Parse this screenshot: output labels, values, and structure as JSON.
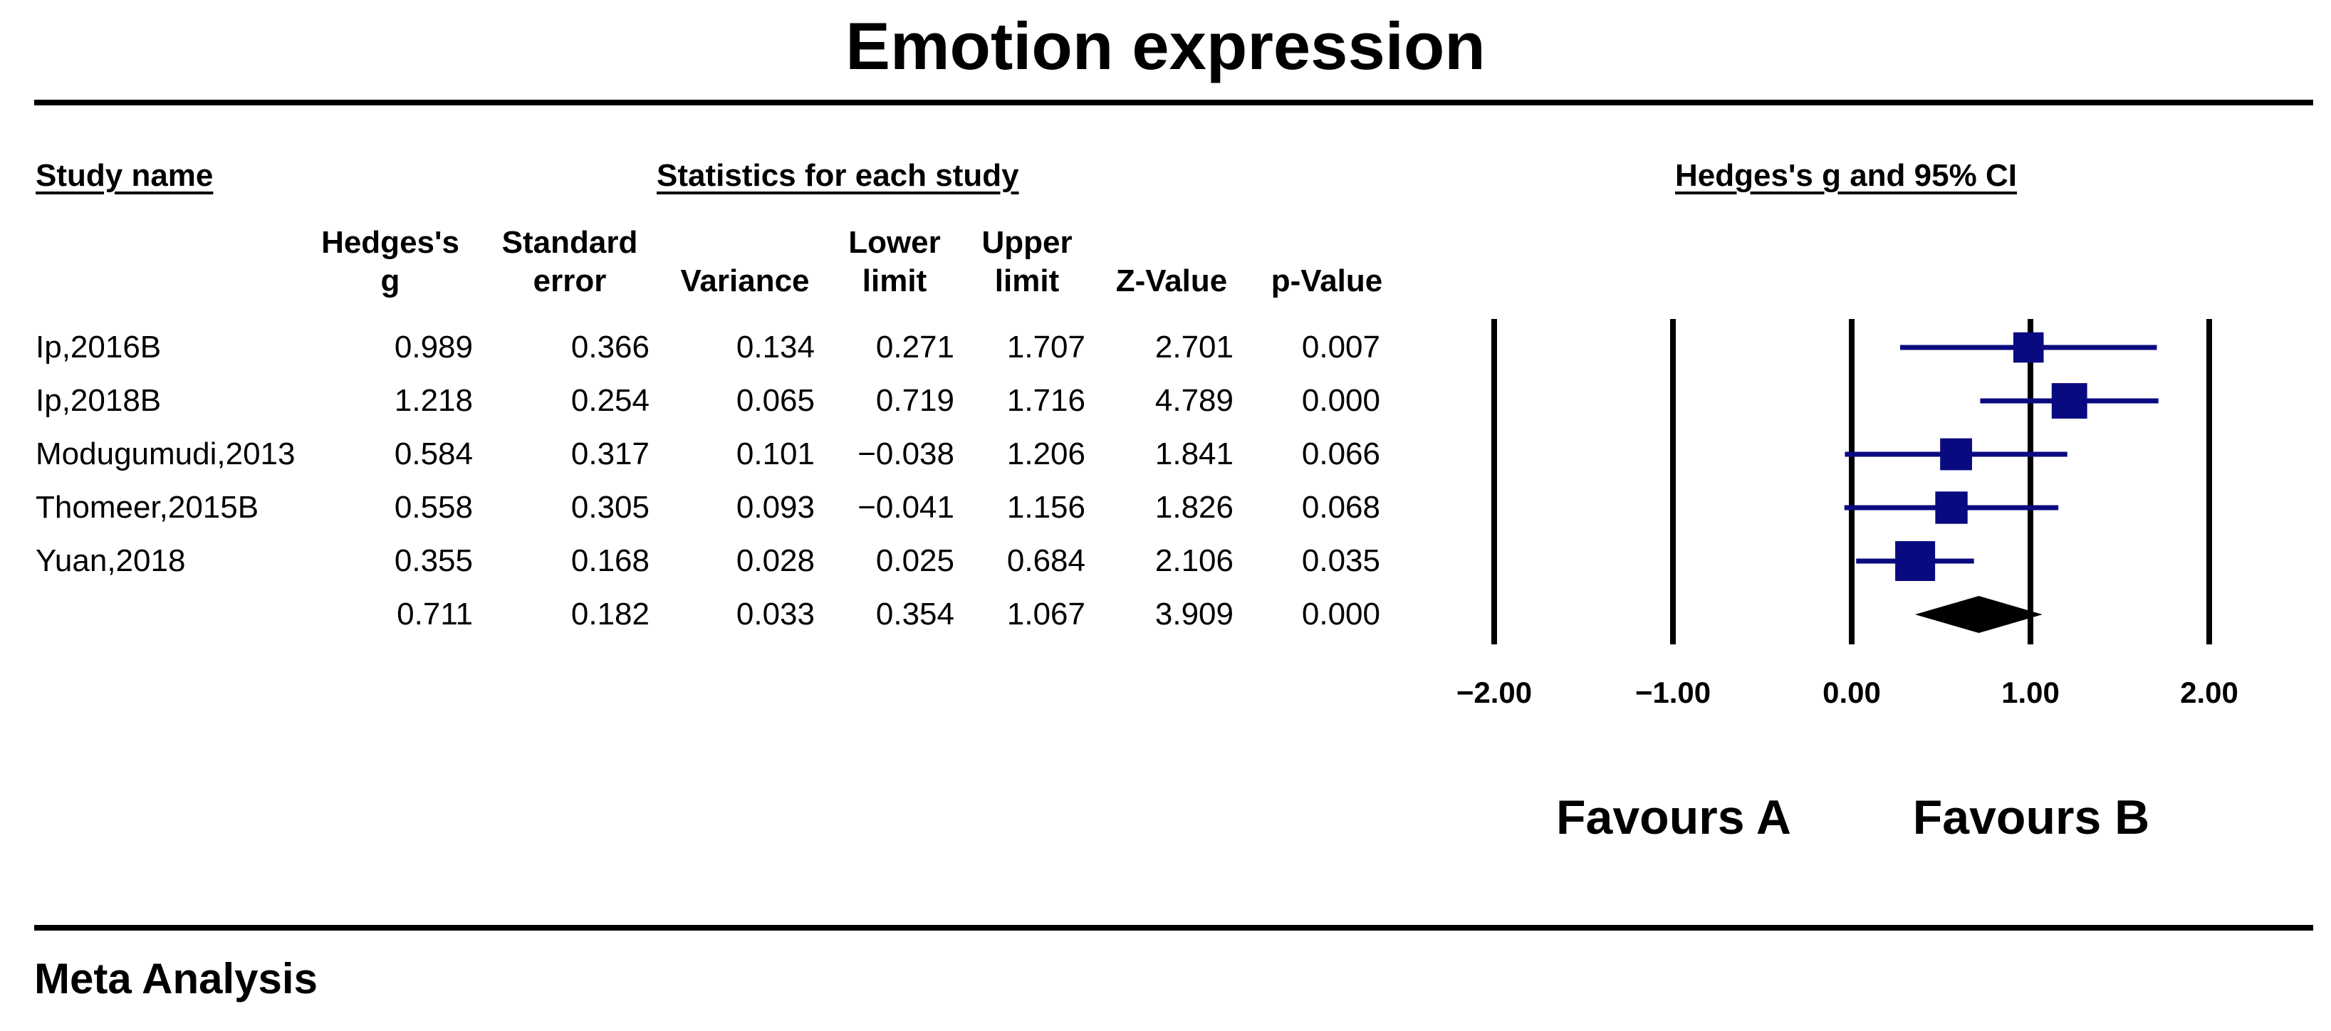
{
  "chart_data": {
    "type": "forest",
    "title": "Emotion expression",
    "section_headers": {
      "study_name": "Study name",
      "statistics": "Statistics for each study",
      "plot": "Hedges's g and 95% CI"
    },
    "columns": [
      {
        "key": "g",
        "line1": "Hedges's",
        "line2": "g"
      },
      {
        "key": "se",
        "line1": "Standard",
        "line2": "error"
      },
      {
        "key": "var",
        "line1": "",
        "line2": "Variance"
      },
      {
        "key": "lower",
        "line1": "Lower",
        "line2": "limit"
      },
      {
        "key": "upper",
        "line1": "Upper",
        "line2": "limit"
      },
      {
        "key": "z",
        "line1": "",
        "line2": "Z-Value"
      },
      {
        "key": "p",
        "line1": "",
        "line2": "p-Value"
      }
    ],
    "studies": [
      {
        "name": "Ip,2016B",
        "g": "0.989",
        "se": "0.366",
        "var": "0.134",
        "lower": "0.271",
        "upper": "1.707",
        "z": "2.701",
        "p": "0.007",
        "weight": 0.52
      },
      {
        "name": "Ip,2018B",
        "g": "1.218",
        "se": "0.254",
        "var": "0.065",
        "lower": "0.719",
        "upper": "1.716",
        "z": "4.789",
        "p": "0.000",
        "weight": 0.78
      },
      {
        "name": "Modugumudi,2013",
        "g": "0.584",
        "se": "0.317",
        "var": "0.101",
        "lower": "−0.038",
        "upper": "1.206",
        "z": "1.841",
        "p": "0.066",
        "weight": 0.6
      },
      {
        "name": "Thomeer,2015B",
        "g": "0.558",
        "se": "0.305",
        "var": "0.093",
        "lower": "−0.041",
        "upper": "1.156",
        "z": "1.826",
        "p": "0.068",
        "weight": 0.62
      },
      {
        "name": "Yuan,2018",
        "g": "0.355",
        "se": "0.168",
        "var": "0.028",
        "lower": "0.025",
        "upper": "0.684",
        "z": "2.106",
        "p": "0.035",
        "weight": 1.0
      }
    ],
    "summary": {
      "name": "",
      "g": "0.711",
      "se": "0.182",
      "var": "0.033",
      "lower": "0.354",
      "upper": "1.067",
      "z": "3.909",
      "p": "0.000"
    },
    "xaxis": {
      "range": [
        -2,
        2
      ],
      "ticks": [
        -2,
        -1,
        0,
        1,
        2
      ],
      "tick_labels": [
        "−2.00",
        "−1.00",
        "0.00",
        "1.00",
        "2.00"
      ]
    },
    "favours": {
      "left": "Favours A",
      "right": "Favours B"
    },
    "footer": "Meta Analysis",
    "colors": {
      "marker": "#0a0a80",
      "summary": "#000000",
      "lines": "#000000"
    }
  }
}
